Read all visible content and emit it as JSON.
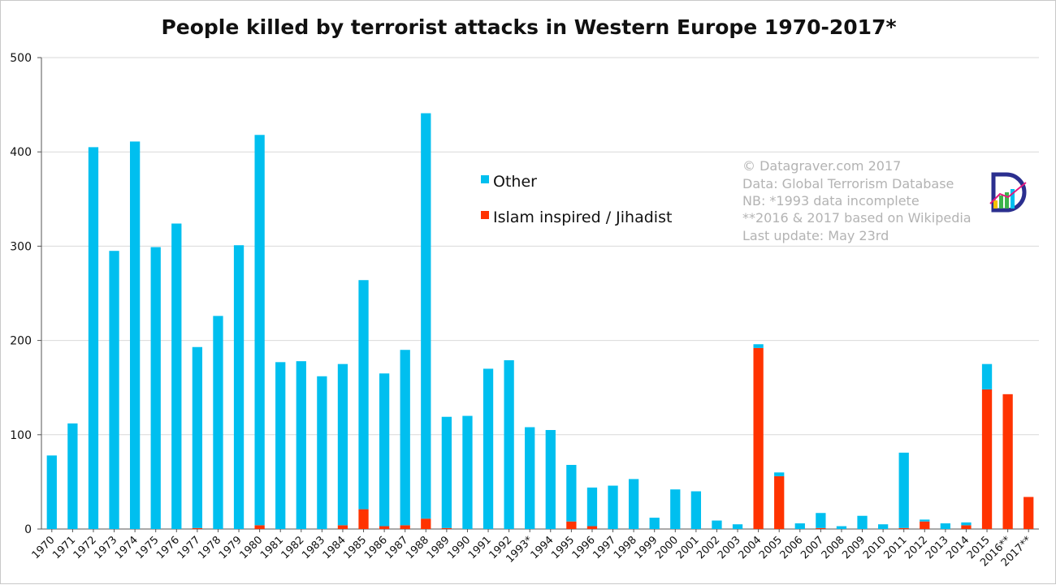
{
  "chart_data": {
    "type": "bar",
    "stacked": true,
    "title": "People killed by terrorist attacks in Western Europe 1970-2017*",
    "xlabel": "",
    "ylabel": "",
    "ylim": [
      0,
      500
    ],
    "yticks": [
      0,
      100,
      200,
      300,
      400,
      500
    ],
    "grid": true,
    "legend_position": "top-center",
    "categories": [
      "1970",
      "1971",
      "1972",
      "1973",
      "1974",
      "1975",
      "1976",
      "1977",
      "1978",
      "1979",
      "1980",
      "1981",
      "1982",
      "1983",
      "1984",
      "1985",
      "1986",
      "1987",
      "1988",
      "1989",
      "1990",
      "1991",
      "1992",
      "1993*",
      "1994",
      "1995",
      "1996",
      "1997",
      "1998",
      "1999",
      "2000",
      "2001",
      "2002",
      "2003",
      "2004",
      "2005",
      "2006",
      "2007",
      "2008",
      "2009",
      "2010",
      "2011",
      "2012",
      "2013",
      "2014",
      "2015",
      "2016**",
      "2017**"
    ],
    "series": [
      {
        "name": "Islam inspired / Jihadist",
        "color": "#ff3300",
        "values": [
          0,
          0,
          0,
          0,
          0,
          0,
          0,
          1,
          0,
          0,
          4,
          0,
          0,
          0,
          4,
          21,
          3,
          4,
          11,
          1,
          0,
          0,
          0,
          0,
          0,
          8,
          3,
          0,
          0,
          0,
          0,
          0,
          0,
          0,
          192,
          56,
          0,
          1,
          0,
          0,
          0,
          1,
          8,
          0,
          4,
          148,
          143,
          34
        ]
      },
      {
        "name": "Other",
        "color": "#00bfef",
        "values": [
          78,
          112,
          405,
          295,
          411,
          299,
          324,
          192,
          226,
          301,
          414,
          177,
          178,
          162,
          171,
          243,
          162,
          186,
          430,
          118,
          120,
          170,
          179,
          108,
          105,
          60,
          41,
          46,
          53,
          12,
          42,
          40,
          9,
          5,
          4,
          4,
          6,
          16,
          3,
          14,
          5,
          80,
          2,
          6,
          3,
          27,
          0,
          0
        ]
      }
    ]
  },
  "legend": {
    "other": "Other",
    "jihadist": "Islam inspired / Jihadist"
  },
  "credit": {
    "lines": [
      "© Datagraver.com 2017",
      "Data: Global Terrorism Database",
      "NB: *1993 data incomplete",
      "**2016 & 2017 based on Wikipedia",
      "Last update: May 23rd"
    ]
  },
  "logo": {
    "letter": "D",
    "colors": [
      "#2b2f8f",
      "#f5c000",
      "#3cb44b",
      "#00bfef",
      "#e6197e"
    ]
  }
}
